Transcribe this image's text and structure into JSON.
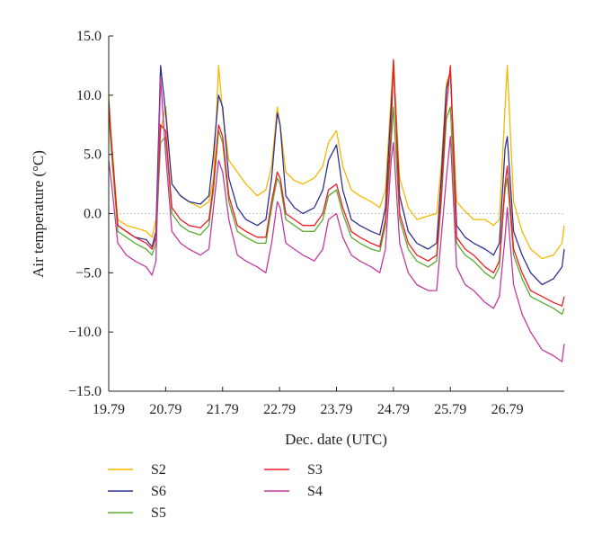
{
  "chart_data": {
    "type": "line",
    "title": "",
    "xlabel": "Dec. date (UTC)",
    "ylabel": "Air temperature (°C)",
    "xlim": [
      19.79,
      27.79
    ],
    "ylim": [
      -15.0,
      15.0
    ],
    "xticks": [
      19.79,
      20.79,
      21.79,
      22.79,
      23.79,
      24.79,
      25.79,
      26.79
    ],
    "xtick_labels": [
      "19.79",
      "20.79",
      "21.79",
      "22.79",
      "23.79",
      "24.79",
      "25.79",
      "26.79"
    ],
    "yticks": [
      -15.0,
      -10.0,
      -5.0,
      0.0,
      5.0,
      10.0,
      15.0
    ],
    "ytick_labels": [
      "−15.0",
      "−10.0",
      "−5.0",
      "0.0",
      "5.0",
      "10.0",
      "15.0"
    ],
    "grid": "dashed line at 0.0 only",
    "legend_position": "bottom",
    "series": [
      {
        "name": "S2",
        "color": "#f5b800",
        "x": [
          19.79,
          19.84,
          19.95,
          20.1,
          20.25,
          20.45,
          20.55,
          20.62,
          20.7,
          20.79,
          20.9,
          21.05,
          21.2,
          21.4,
          21.55,
          21.63,
          21.72,
          21.79,
          21.9,
          22.05,
          22.2,
          22.4,
          22.55,
          22.65,
          22.75,
          22.8,
          22.9,
          23.05,
          23.2,
          23.4,
          23.55,
          23.65,
          23.79,
          23.9,
          24.05,
          24.2,
          24.4,
          24.55,
          24.65,
          24.75,
          24.79,
          24.9,
          25.05,
          25.2,
          25.4,
          25.55,
          25.63,
          25.72,
          25.79,
          25.9,
          26.05,
          26.2,
          26.4,
          26.55,
          26.65,
          26.75,
          26.79,
          26.9,
          27.05,
          27.2,
          27.4,
          27.6,
          27.75,
          27.79
        ],
        "y": [
          10.0,
          6.0,
          -0.5,
          -1.0,
          -1.2,
          -1.5,
          -2.0,
          -0.5,
          7.0,
          9.0,
          2.5,
          1.5,
          1.0,
          0.5,
          1.0,
          3.0,
          12.5,
          8.5,
          4.5,
          3.5,
          2.5,
          1.5,
          2.0,
          4.0,
          9.0,
          7.5,
          3.5,
          2.8,
          2.5,
          3.0,
          4.0,
          6.0,
          7.0,
          4.0,
          2.0,
          1.5,
          1.0,
          0.5,
          2.0,
          10.0,
          13.0,
          3.0,
          0.5,
          -0.5,
          -0.2,
          0.0,
          4.0,
          11.0,
          12.0,
          1.0,
          0.2,
          -0.5,
          -0.5,
          -1.0,
          -0.5,
          9.0,
          12.5,
          1.0,
          -1.5,
          -3.0,
          -3.8,
          -3.5,
          -2.5,
          -1.0
        ]
      },
      {
        "name": "S6",
        "color": "#2e3192",
        "x": [
          19.79,
          19.84,
          19.95,
          20.1,
          20.25,
          20.45,
          20.55,
          20.62,
          20.7,
          20.79,
          20.9,
          21.05,
          21.2,
          21.4,
          21.55,
          21.63,
          21.72,
          21.79,
          21.9,
          22.05,
          22.2,
          22.4,
          22.55,
          22.65,
          22.75,
          22.8,
          22.9,
          23.05,
          23.2,
          23.4,
          23.55,
          23.65,
          23.79,
          23.9,
          24.05,
          24.2,
          24.4,
          24.55,
          24.65,
          24.75,
          24.79,
          24.9,
          25.05,
          25.2,
          25.4,
          25.55,
          25.63,
          25.72,
          25.79,
          25.9,
          26.05,
          26.2,
          26.4,
          26.55,
          26.65,
          26.75,
          26.79,
          26.9,
          27.05,
          27.2,
          27.4,
          27.6,
          27.75,
          27.79
        ],
        "y": [
          9.5,
          5.5,
          -1.0,
          -1.5,
          -2.0,
          -2.2,
          -2.8,
          -1.5,
          12.5,
          8.5,
          2.5,
          1.5,
          1.0,
          0.8,
          1.5,
          5.0,
          10.0,
          9.0,
          3.0,
          0.5,
          -0.5,
          -1.0,
          -0.5,
          3.0,
          8.5,
          7.5,
          1.5,
          0.5,
          0.0,
          0.5,
          2.0,
          4.5,
          5.8,
          2.0,
          -0.5,
          -1.0,
          -1.5,
          -1.8,
          0.5,
          9.0,
          12.5,
          1.5,
          -1.5,
          -2.5,
          -3.0,
          -2.5,
          3.0,
          10.5,
          12.0,
          -1.0,
          -2.0,
          -2.5,
          -3.0,
          -3.5,
          -2.5,
          5.5,
          6.5,
          -1.5,
          -3.5,
          -5.0,
          -6.0,
          -5.5,
          -4.5,
          -3.0
        ]
      },
      {
        "name": "S5",
        "color": "#5aaa32",
        "x": [
          19.79,
          19.84,
          19.95,
          20.1,
          20.25,
          20.45,
          20.55,
          20.62,
          20.7,
          20.79,
          20.9,
          21.05,
          21.2,
          21.4,
          21.55,
          21.63,
          21.72,
          21.79,
          21.9,
          22.05,
          22.2,
          22.4,
          22.55,
          22.65,
          22.75,
          22.8,
          22.9,
          23.05,
          23.2,
          23.4,
          23.55,
          23.65,
          23.79,
          23.9,
          24.05,
          24.2,
          24.4,
          24.55,
          24.65,
          24.75,
          24.79,
          24.9,
          25.05,
          25.2,
          25.4,
          25.55,
          25.63,
          25.72,
          25.79,
          25.9,
          26.05,
          26.2,
          26.4,
          26.55,
          26.65,
          26.75,
          26.79,
          26.9,
          27.05,
          27.2,
          27.4,
          27.6,
          27.75,
          27.79
        ],
        "y": [
          8.5,
          5.0,
          -1.5,
          -2.0,
          -2.5,
          -3.0,
          -3.5,
          -2.5,
          6.0,
          6.5,
          0.0,
          -1.0,
          -1.5,
          -1.8,
          -1.0,
          2.0,
          7.0,
          6.0,
          1.0,
          -1.5,
          -2.0,
          -2.5,
          -2.5,
          0.5,
          3.0,
          2.5,
          -0.5,
          -1.0,
          -1.5,
          -1.5,
          -0.5,
          1.5,
          2.0,
          0.0,
          -2.0,
          -2.5,
          -3.0,
          -3.2,
          -1.0,
          6.0,
          9.0,
          -0.5,
          -3.0,
          -4.0,
          -4.5,
          -4.0,
          1.0,
          8.0,
          9.0,
          -2.5,
          -3.5,
          -4.0,
          -5.0,
          -5.5,
          -4.5,
          2.0,
          3.0,
          -3.5,
          -5.5,
          -7.0,
          -7.5,
          -8.0,
          -8.5,
          -8.0
        ]
      },
      {
        "name": "S3",
        "color": "#ed1c24",
        "x": [
          19.79,
          19.84,
          19.95,
          20.1,
          20.25,
          20.45,
          20.55,
          20.62,
          20.7,
          20.79,
          20.9,
          21.05,
          21.2,
          21.4,
          21.55,
          21.63,
          21.72,
          21.79,
          21.9,
          22.05,
          22.2,
          22.4,
          22.55,
          22.65,
          22.75,
          22.8,
          22.9,
          23.05,
          23.2,
          23.4,
          23.55,
          23.65,
          23.79,
          23.9,
          24.05,
          24.2,
          24.4,
          24.55,
          24.65,
          24.75,
          24.79,
          24.9,
          25.05,
          25.2,
          25.4,
          25.55,
          25.63,
          25.72,
          25.79,
          25.9,
          26.05,
          26.2,
          26.4,
          26.55,
          26.65,
          26.75,
          26.79,
          26.9,
          27.05,
          27.2,
          27.4,
          27.6,
          27.75,
          27.79
        ],
        "y": [
          9.0,
          6.0,
          -1.0,
          -1.5,
          -2.0,
          -2.5,
          -3.0,
          -2.0,
          7.5,
          7.0,
          0.5,
          -0.5,
          -1.0,
          -1.2,
          -0.5,
          2.5,
          7.5,
          6.5,
          1.5,
          -1.0,
          -1.5,
          -2.0,
          -2.0,
          1.0,
          3.5,
          3.0,
          0.0,
          -0.5,
          -1.0,
          -1.0,
          0.0,
          2.0,
          2.5,
          0.5,
          -1.5,
          -2.0,
          -2.5,
          -2.8,
          -0.5,
          7.0,
          13.0,
          0.0,
          -2.5,
          -3.5,
          -4.0,
          -3.5,
          1.5,
          9.0,
          12.5,
          -2.0,
          -3.0,
          -3.5,
          -4.5,
          -5.0,
          -4.0,
          2.5,
          4.0,
          -3.0,
          -5.0,
          -6.5,
          -7.0,
          -7.5,
          -7.8,
          -7.0
        ]
      },
      {
        "name": "S4",
        "color": "#c2399e",
        "x": [
          19.79,
          19.84,
          19.95,
          20.1,
          20.25,
          20.45,
          20.55,
          20.62,
          20.7,
          20.79,
          20.9,
          21.05,
          21.2,
          21.4,
          21.55,
          21.63,
          21.72,
          21.79,
          21.9,
          22.05,
          22.2,
          22.4,
          22.55,
          22.65,
          22.75,
          22.8,
          22.9,
          23.05,
          23.2,
          23.4,
          23.55,
          23.65,
          23.79,
          23.9,
          24.05,
          24.2,
          24.4,
          24.55,
          24.65,
          24.75,
          24.79,
          24.9,
          25.05,
          25.2,
          25.4,
          25.55,
          25.63,
          25.72,
          25.79,
          25.9,
          26.05,
          26.2,
          26.4,
          26.55,
          26.65,
          26.75,
          26.79,
          26.9,
          27.05,
          27.2,
          27.4,
          27.6,
          27.75,
          27.79
        ],
        "y": [
          4.5,
          2.5,
          -2.5,
          -3.5,
          -4.0,
          -4.5,
          -5.2,
          -4.0,
          11.5,
          5.0,
          -1.5,
          -2.5,
          -3.0,
          -3.5,
          -3.0,
          0.5,
          4.5,
          3.5,
          -0.5,
          -3.5,
          -4.0,
          -4.5,
          -5.0,
          -2.5,
          1.0,
          0.5,
          -2.5,
          -3.0,
          -3.5,
          -4.0,
          -3.0,
          -0.5,
          0.0,
          -2.0,
          -3.5,
          -4.0,
          -4.5,
          -5.0,
          -3.0,
          4.5,
          6.0,
          -2.5,
          -5.0,
          -6.0,
          -6.5,
          -6.5,
          -2.0,
          3.0,
          6.5,
          -4.5,
          -6.0,
          -6.5,
          -7.5,
          -8.0,
          -7.0,
          -2.0,
          0.5,
          -6.0,
          -8.5,
          -10.0,
          -11.5,
          -12.0,
          -12.5,
          -11.0
        ]
      }
    ]
  }
}
